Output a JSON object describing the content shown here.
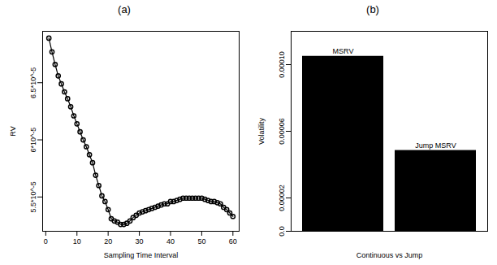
{
  "chart_data": [
    {
      "type": "line",
      "title": "(a)",
      "xlabel": "Sampling Time Interval",
      "ylabel": "RV",
      "marker": "circle",
      "color": "#000000",
      "x": [
        1,
        2,
        3,
        4,
        5,
        6,
        7,
        8,
        9,
        10,
        11,
        12,
        13,
        14,
        15,
        16,
        17,
        18,
        19,
        20,
        21,
        22,
        23,
        24,
        25,
        26,
        27,
        28,
        29,
        30,
        31,
        32,
        33,
        34,
        35,
        36,
        37,
        38,
        39,
        40,
        41,
        42,
        43,
        44,
        45,
        46,
        47,
        48,
        49,
        50,
        51,
        52,
        53,
        54,
        55,
        56,
        57,
        58,
        59,
        60
      ],
      "values": [
        6.89e-05,
        6.77e-05,
        6.66e-05,
        6.56e-05,
        6.49e-05,
        6.42e-05,
        6.36e-05,
        6.29e-05,
        6.21e-05,
        6.14e-05,
        6.07e-05,
        6e-05,
        5.94e-05,
        5.87e-05,
        5.8e-05,
        5.69e-05,
        5.6e-05,
        5.51e-05,
        5.46e-05,
        5.39e-05,
        5.31e-05,
        5.29e-05,
        5.28e-05,
        5.26e-05,
        5.26e-05,
        5.27e-05,
        5.29e-05,
        5.32e-05,
        5.34e-05,
        5.36e-05,
        5.37e-05,
        5.38e-05,
        5.39e-05,
        5.4e-05,
        5.41e-05,
        5.42e-05,
        5.43e-05,
        5.44e-05,
        5.44e-05,
        5.46e-05,
        5.46e-05,
        5.47e-05,
        5.48e-05,
        5.49e-05,
        5.49e-05,
        5.49e-05,
        5.49e-05,
        5.49e-05,
        5.49e-05,
        5.49e-05,
        5.48e-05,
        5.47e-05,
        5.46e-05,
        5.46e-05,
        5.45e-05,
        5.44e-05,
        5.41e-05,
        5.39e-05,
        5.36e-05,
        5.33e-05
      ],
      "xlim": [
        -1,
        62
      ],
      "xticks": [
        0,
        10,
        20,
        30,
        40,
        50,
        60
      ],
      "ylim": [
        5.2e-05,
        6.95e-05
      ],
      "yticks": [
        {
          "value": 5.5e-05,
          "label": "5.5*10^-5"
        },
        {
          "value": 6e-05,
          "label": "6*10^-5"
        },
        {
          "value": 6.5e-05,
          "label": "6.5*10^-5"
        }
      ]
    },
    {
      "type": "bar",
      "title": "(b)",
      "xlabel": "Continuous vs Jump",
      "ylabel": "Volatility",
      "categories": [
        "MSRV",
        "Jump MSRV"
      ],
      "values": [
        0.000105,
        4.85e-05
      ],
      "color": "#000000",
      "ylim": [
        0,
        0.00012
      ],
      "yticks": [
        {
          "value": 0,
          "label": "0.0"
        },
        {
          "value": 2e-05,
          "label": "0.00002"
        },
        {
          "value": 6e-05,
          "label": "0.00006"
        },
        {
          "value": 0.0001,
          "label": "0.00010"
        }
      ],
      "tick_labels": "y",
      "data_labels": true
    }
  ]
}
